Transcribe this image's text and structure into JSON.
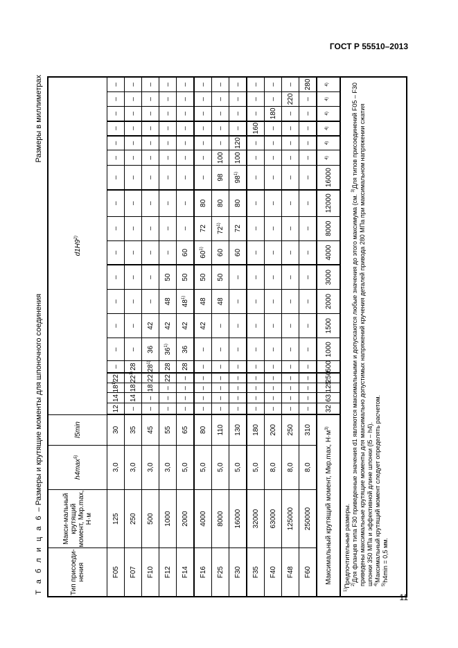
{
  "header": {
    "standard": "ГОСТ Р 55510–2013"
  },
  "page_number": "11",
  "caption": {
    "label": "Т а б л и ц а  6",
    "title": " – Размеры и крутящие моменты для шпоночного соединения"
  },
  "units": "Размеры в миллиметрах",
  "table": {
    "headers": {
      "type": "Тип присоеди-нения",
      "mmax": "Макси-мальный крутящий момент, Mкр.max, Н·м",
      "h4max": "h4max",
      "h4max_note": "5)",
      "l5min": "l5min",
      "d1": "d1H9",
      "d1_note": "2)"
    },
    "rows": [
      {
        "type": "F05",
        "mmax": "125",
        "h4": "3,0",
        "l5": "30",
        "d": [
          "12",
          "14",
          "18|1)",
          "22",
          "–",
          "–",
          "–",
          "–",
          "–",
          "–",
          "–",
          "–",
          "–",
          "–",
          "–",
          "–",
          "–",
          "–",
          "–"
        ]
      },
      {
        "type": "F07",
        "mmax": "250",
        "h4": "3,0",
        "l5": "35",
        "d": [
          "–",
          "14",
          "18",
          "22|1)",
          "28",
          "–",
          "–",
          "–",
          "–",
          "–",
          "–",
          "–",
          "–",
          "–",
          "–",
          "–",
          "–",
          "–",
          "–"
        ]
      },
      {
        "type": "F10",
        "mmax": "500",
        "h4": "3,0",
        "l5": "45",
        "d": [
          "–",
          "–",
          "18",
          "22",
          "28|1)",
          "36",
          "42",
          "–",
          "–",
          "–",
          "–",
          "–",
          "–",
          "–",
          "–",
          "–",
          "–",
          "–",
          "–"
        ]
      },
      {
        "type": "F12",
        "mmax": "1000",
        "h4": "3,0",
        "l5": "55",
        "d": [
          "–",
          "–",
          "–",
          "22",
          "28",
          "36|1)",
          "42",
          "48",
          "50",
          "–",
          "–",
          "–",
          "–",
          "–",
          "–",
          "–",
          "–",
          "–",
          "–"
        ]
      },
      {
        "type": "F14",
        "mmax": "2000",
        "h4": "5,0",
        "l5": "65",
        "d": [
          "–",
          "–",
          "–",
          "–",
          "28",
          "36",
          "42",
          "48|1)",
          "50",
          "60",
          "–",
          "–",
          "–",
          "–",
          "–",
          "–",
          "–",
          "–",
          "–"
        ]
      },
      {
        "type": "F16",
        "mmax": "4000",
        "h4": "5,0",
        "l5": "80",
        "d": [
          "–",
          "–",
          "–",
          "–",
          "–",
          "–",
          "42",
          "48",
          "50",
          "60|1)",
          "72",
          "80",
          "–",
          "–",
          "–",
          "–",
          "–",
          "–",
          "–"
        ]
      },
      {
        "type": "F25",
        "mmax": "8000",
        "h4": "5,0",
        "l5": "110",
        "d": [
          "–",
          "–",
          "–",
          "–",
          "–",
          "–",
          "–",
          "48",
          "50",
          "60",
          "72|1)",
          "80",
          "98",
          "100",
          "–",
          "–",
          "–",
          "–",
          "–"
        ]
      },
      {
        "type": "F30",
        "mmax": "16000",
        "h4": "5,0",
        "l5": "130",
        "d": [
          "–",
          "–",
          "–",
          "–",
          "–",
          "–",
          "–",
          "–",
          "–",
          "60",
          "72",
          "80",
          "98|1)",
          "100",
          "120",
          "–",
          "–",
          "–",
          "–"
        ]
      },
      {
        "type": "F35",
        "mmax": "32000",
        "h4": "5,0",
        "l5": "180",
        "d": [
          "–",
          "–",
          "–",
          "–",
          "–",
          "–",
          "–",
          "–",
          "–",
          "–",
          "–",
          "–",
          "–",
          "–",
          "–",
          "160",
          "–",
          "–",
          "–"
        ]
      },
      {
        "type": "F40",
        "mmax": "63000",
        "h4": "8,0",
        "l5": "200",
        "d": [
          "–",
          "–",
          "–",
          "–",
          "–",
          "–",
          "–",
          "–",
          "–",
          "–",
          "–",
          "–",
          "–",
          "–",
          "–",
          "–",
          "180",
          "–",
          "–"
        ]
      },
      {
        "type": "F48",
        "mmax": "125000",
        "h4": "8,0",
        "l5": "250",
        "d": [
          "–",
          "–",
          "–",
          "–",
          "–",
          "–",
          "–",
          "–",
          "–",
          "–",
          "–",
          "–",
          "–",
          "–",
          "–",
          "–",
          "–",
          "220",
          "–"
        ]
      },
      {
        "type": "F60",
        "mmax": "250000",
        "h4": "8,0",
        "l5": "310",
        "d": [
          "–",
          "–",
          "–",
          "–",
          "–",
          "–",
          "–",
          "–",
          "–",
          "–",
          "–",
          "–",
          "–",
          "–",
          "–",
          "–",
          "–",
          "–",
          "280"
        ]
      }
    ],
    "torque_row": {
      "label": "Максимальный крутящий момент, Mкр.max, Н·м",
      "label_note": "3)",
      "values": [
        "32",
        "63",
        "125",
        "250",
        "500",
        "1000",
        "1500",
        "2000",
        "3000",
        "4000",
        "8000",
        "12000",
        "16000",
        "|4)",
        "|4)",
        "|4)",
        "|4)",
        "|4)",
        "|4)"
      ]
    },
    "footnotes": [
      {
        "mark": "1)",
        "text": "Предпочтительные размеры."
      },
      {
        "mark": "2)",
        "text": "Для фланцев типа F30 приведенные значения d1 являются максимальными и допускаются любые значения до этого максимума (см. "
      },
      {
        "mark": "3)",
        "text": "Для типов присоединений F05 – F30 приведены максимальные крутящие моменты для максимально допустимых напряжений кручения деталей привода 280 МПа при максимальном напряжении сжатия шпонки 350 МПа и эффективной длине шпонки (l5 – h4)."
      },
      {
        "mark": "4)",
        "text": "Максимальный крутящий момент следует определять расчетом."
      },
      {
        "mark": "5)",
        "text": "h4min = 0,5 мм."
      }
    ]
  }
}
